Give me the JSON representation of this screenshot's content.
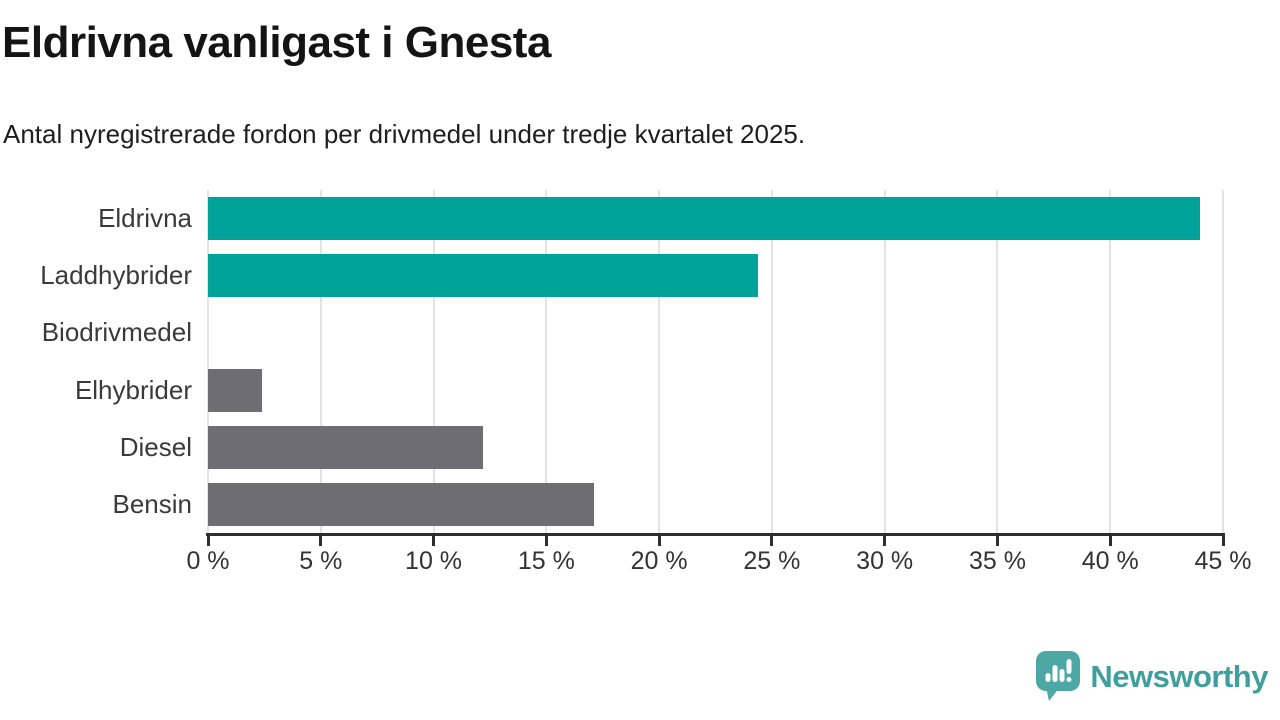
{
  "header": {
    "title": "Eldrivna vanligast i Gnesta",
    "subtitle": "Antal nyregistrerade fordon per drivmedel under tredje kvartalet 2025."
  },
  "chart_data": {
    "type": "bar",
    "orientation": "horizontal",
    "categories": [
      "Eldrivna",
      "Laddhybrider",
      "Biodrivmedel",
      "Elhybrider",
      "Diesel",
      "Bensin"
    ],
    "values": [
      44.0,
      24.4,
      0,
      2.4,
      12.2,
      17.1
    ],
    "unit": "%",
    "xlim": [
      0,
      45
    ],
    "x_ticks": [
      0,
      5,
      10,
      15,
      20,
      25,
      30,
      35,
      40,
      45
    ],
    "x_tick_labels": [
      "0 %",
      "5 %",
      "10 %",
      "15 %",
      "20 %",
      "25 %",
      "30 %",
      "35 %",
      "40 %",
      "45 %"
    ],
    "bar_colors": [
      "#00a39a",
      "#00a39a",
      "#6e6e72",
      "#6e6e72",
      "#6e6e72",
      "#6e6e72"
    ],
    "highlight_color": "#00a39a",
    "muted_color": "#6e6e72",
    "gridline_color": "#e3e3e3",
    "axis_color": "#2e2e2e",
    "grid": true,
    "legend": "none"
  },
  "branding": {
    "logo_text": "Newsworthy",
    "logo_text_color": "#3f9f9d",
    "logo_icon_color": "#4da7a4",
    "logo_icon": "speech-bubble-bar-chart-exclamation"
  }
}
